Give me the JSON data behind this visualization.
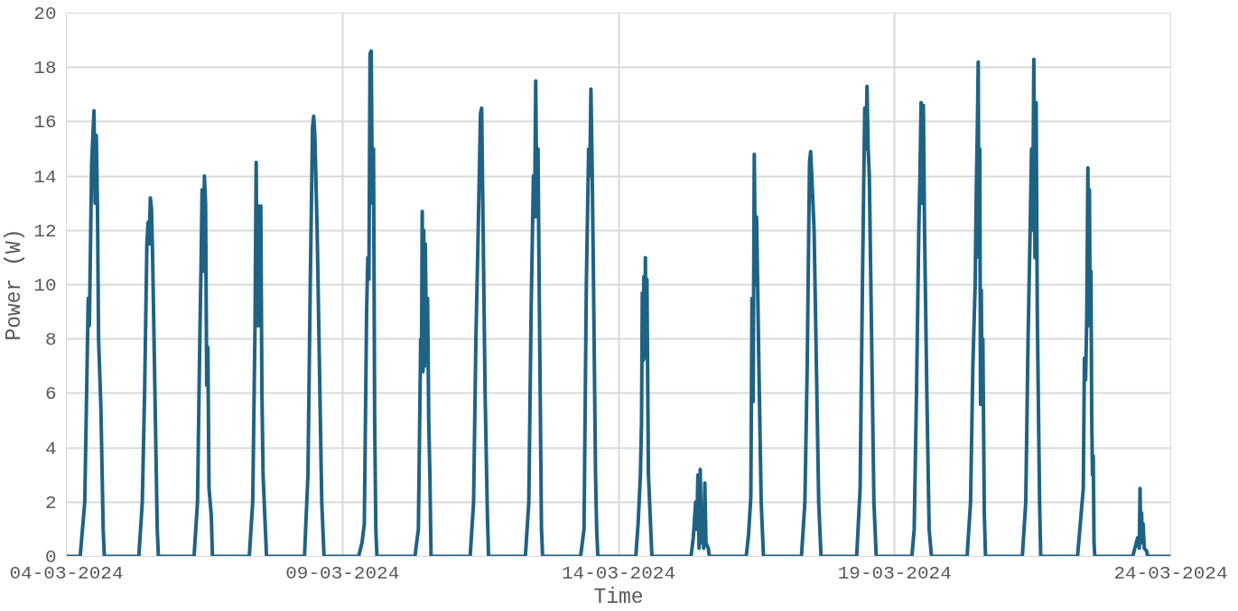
{
  "chart_data": {
    "type": "line",
    "xlabel": "Time",
    "ylabel": "Power (W)",
    "xlim": [
      "2024-03-04",
      "2024-03-24"
    ],
    "xticks": [
      {
        "value": "2024-03-04",
        "label": "04-03-2024"
      },
      {
        "value": "2024-03-09",
        "label": "09-03-2024"
      },
      {
        "value": "2024-03-14",
        "label": "14-03-2024"
      },
      {
        "value": "2024-03-19",
        "label": "19-03-2024"
      },
      {
        "value": "2024-03-24",
        "label": "24-03-2024"
      }
    ],
    "ylim": [
      0,
      20
    ],
    "yticks": [
      0,
      2,
      4,
      6,
      8,
      10,
      12,
      14,
      16,
      18,
      20
    ],
    "grid": true,
    "line_style": "solid",
    "series": [
      {
        "color": "#1f6384",
        "x": [
          "2024-03-04T00:00",
          "2024-03-04T06:00",
          "2024-03-04T08:00",
          "2024-03-04T09:30",
          "2024-03-04T10:00",
          "2024-03-04T11:00",
          "2024-03-04T12:00",
          "2024-03-04T12:30",
          "2024-03-04T13:00",
          "2024-03-04T13:30",
          "2024-03-04T14:00",
          "2024-03-04T15:00",
          "2024-03-04T16:00",
          "2024-03-04T16:30",
          "2024-03-05T07:30",
          "2024-03-05T09:00",
          "2024-03-05T10:00",
          "2024-03-05T11:00",
          "2024-03-05T11:30",
          "2024-03-05T12:00",
          "2024-03-05T12:30",
          "2024-03-05T13:00",
          "2024-03-05T13:30",
          "2024-03-05T14:30",
          "2024-03-05T15:30",
          "2024-03-05T16:00",
          "2024-03-06T07:30",
          "2024-03-06T09:00",
          "2024-03-06T10:00",
          "2024-03-06T10:30",
          "2024-03-06T11:00",
          "2024-03-06T11:30",
          "2024-03-06T12:00",
          "2024-03-06T12:30",
          "2024-03-06T13:00",
          "2024-03-06T13:30",
          "2024-03-06T14:00",
          "2024-03-06T15:00",
          "2024-03-06T15:30",
          "2024-03-07T07:30",
          "2024-03-07T09:00",
          "2024-03-07T10:00",
          "2024-03-07T10:30",
          "2024-03-07T11:00",
          "2024-03-07T11:30",
          "2024-03-07T12:00",
          "2024-03-07T12:30",
          "2024-03-07T13:00",
          "2024-03-07T13:30",
          "2024-03-07T14:00",
          "2024-03-07T15:00",
          "2024-03-08T07:30",
          "2024-03-08T09:00",
          "2024-03-08T10:00",
          "2024-03-08T11:00",
          "2024-03-08T11:30",
          "2024-03-08T12:00",
          "2024-03-08T13:00",
          "2024-03-08T14:00",
          "2024-03-08T15:00",
          "2024-03-08T16:00",
          "2024-03-09T07:00",
          "2024-03-09T08:30",
          "2024-03-09T09:30",
          "2024-03-09T10:30",
          "2024-03-09T11:00",
          "2024-03-09T11:30",
          "2024-03-09T12:00",
          "2024-03-09T12:30",
          "2024-03-09T13:00",
          "2024-03-09T13:30",
          "2024-03-09T14:00",
          "2024-03-09T14:30",
          "2024-03-09T15:00",
          "2024-03-10T07:30",
          "2024-03-10T09:00",
          "2024-03-10T10:00",
          "2024-03-10T10:20",
          "2024-03-10T10:40",
          "2024-03-10T11:00",
          "2024-03-10T11:20",
          "2024-03-10T11:40",
          "2024-03-10T12:00",
          "2024-03-10T12:30",
          "2024-03-10T13:00",
          "2024-03-10T13:30",
          "2024-03-10T14:00",
          "2024-03-10T14:30",
          "2024-03-11T07:30",
          "2024-03-11T09:00",
          "2024-03-11T10:00",
          "2024-03-11T11:00",
          "2024-03-11T12:00",
          "2024-03-11T12:30",
          "2024-03-11T13:00",
          "2024-03-11T14:00",
          "2024-03-11T15:00",
          "2024-03-11T15:30",
          "2024-03-12T07:30",
          "2024-03-12T09:00",
          "2024-03-12T10:00",
          "2024-03-12T11:00",
          "2024-03-12T11:30",
          "2024-03-12T12:00",
          "2024-03-12T12:30",
          "2024-03-12T13:00",
          "2024-03-12T13:30",
          "2024-03-12T14:00",
          "2024-03-12T14:30",
          "2024-03-12T15:00",
          "2024-03-13T07:30",
          "2024-03-13T09:00",
          "2024-03-13T10:00",
          "2024-03-13T11:00",
          "2024-03-13T11:30",
          "2024-03-13T12:00",
          "2024-03-13T12:30",
          "2024-03-13T13:00",
          "2024-03-13T14:00",
          "2024-03-13T14:30",
          "2024-03-13T15:00",
          "2024-03-14T07:30",
          "2024-03-14T08:30",
          "2024-03-14T09:30",
          "2024-03-14T10:00",
          "2024-03-14T10:20",
          "2024-03-14T10:40",
          "2024-03-14T11:00",
          "2024-03-14T11:20",
          "2024-03-14T11:40",
          "2024-03-14T12:00",
          "2024-03-14T12:20",
          "2024-03-14T12:40",
          "2024-03-14T13:00",
          "2024-03-14T14:00",
          "2024-03-14T14:30",
          "2024-03-15T07:30",
          "2024-03-15T08:30",
          "2024-03-15T09:30",
          "2024-03-15T10:00",
          "2024-03-15T10:30",
          "2024-03-15T11:00",
          "2024-03-15T11:30",
          "2024-03-15T12:00",
          "2024-03-15T12:30",
          "2024-03-15T13:00",
          "2024-03-15T13:30",
          "2024-03-15T14:00",
          "2024-03-15T15:00",
          "2024-03-15T15:30",
          "2024-03-16T07:30",
          "2024-03-16T08:30",
          "2024-03-16T09:30",
          "2024-03-16T10:00",
          "2024-03-16T10:30",
          "2024-03-16T11:00",
          "2024-03-16T11:30",
          "2024-03-16T12:00",
          "2024-03-16T13:00",
          "2024-03-16T14:00",
          "2024-03-16T15:00",
          "2024-03-17T07:30",
          "2024-03-17T09:00",
          "2024-03-17T10:00",
          "2024-03-17T11:00",
          "2024-03-17T11:30",
          "2024-03-17T12:00",
          "2024-03-17T12:30",
          "2024-03-17T13:00",
          "2024-03-17T14:00",
          "2024-03-17T15:00",
          "2024-03-17T16:00",
          "2024-03-18T07:30",
          "2024-03-18T09:00",
          "2024-03-18T10:00",
          "2024-03-18T11:00",
          "2024-03-18T11:30",
          "2024-03-18T12:00",
          "2024-03-18T12:30",
          "2024-03-18T13:00",
          "2024-03-18T14:00",
          "2024-03-18T15:00",
          "2024-03-18T16:00",
          "2024-03-19T07:30",
          "2024-03-19T08:30",
          "2024-03-19T09:30",
          "2024-03-19T10:30",
          "2024-03-19T11:00",
          "2024-03-19T11:30",
          "2024-03-19T12:00",
          "2024-03-19T12:30",
          "2024-03-19T13:00",
          "2024-03-19T14:00",
          "2024-03-19T15:00",
          "2024-03-19T16:00",
          "2024-03-20T07:30",
          "2024-03-20T09:00",
          "2024-03-20T10:00",
          "2024-03-20T11:00",
          "2024-03-20T11:30",
          "2024-03-20T12:00",
          "2024-03-20T12:20",
          "2024-03-20T12:40",
          "2024-03-20T13:00",
          "2024-03-20T13:20",
          "2024-03-20T13:40",
          "2024-03-20T14:00",
          "2024-03-20T14:20",
          "2024-03-20T15:00",
          "2024-03-20T15:30",
          "2024-03-21T07:30",
          "2024-03-21T09:00",
          "2024-03-21T10:00",
          "2024-03-21T11:00",
          "2024-03-21T11:30",
          "2024-03-21T12:00",
          "2024-03-21T12:30",
          "2024-03-21T13:00",
          "2024-03-21T13:30",
          "2024-03-21T14:00",
          "2024-03-21T15:00",
          "2024-03-21T15:30",
          "2024-03-22T07:30",
          "2024-03-22T09:00",
          "2024-03-22T10:00",
          "2024-03-22T10:30",
          "2024-03-22T11:00",
          "2024-03-22T11:30",
          "2024-03-22T12:00",
          "2024-03-22T12:20",
          "2024-03-22T12:40",
          "2024-03-22T13:00",
          "2024-03-22T13:20",
          "2024-03-22T13:40",
          "2024-03-22T14:00",
          "2024-03-22T14:20",
          "2024-03-22T14:40",
          "2024-03-22T15:00",
          "2024-03-23T07:30",
          "2024-03-23T09:00",
          "2024-03-23T09:40",
          "2024-03-23T10:20",
          "2024-03-23T10:40",
          "2024-03-23T11:00",
          "2024-03-23T11:20",
          "2024-03-23T11:40",
          "2024-03-23T12:00",
          "2024-03-23T12:30",
          "2024-03-23T13:30",
          "2024-03-23T14:00",
          "2024-03-24T00:00"
        ],
        "values": [
          0,
          0,
          2,
          9.5,
          8.5,
          14.5,
          16.4,
          13,
          15.5,
          13,
          8,
          5.5,
          1,
          0,
          0,
          2,
          6,
          11.5,
          12.3,
          11.5,
          13.2,
          12.8,
          11,
          6,
          1,
          0,
          0,
          2,
          8,
          10.5,
          13.5,
          10.5,
          14,
          13,
          6.3,
          7.7,
          2.5,
          1.5,
          0,
          0,
          2,
          8.5,
          14.5,
          8.5,
          12.9,
          8.5,
          12.9,
          6,
          3,
          2,
          0,
          0,
          3,
          10,
          15.8,
          16.2,
          15.5,
          12,
          7,
          2,
          0,
          0,
          0.5,
          1.2,
          9,
          11,
          10.2,
          18.5,
          18.6,
          13,
          15,
          5,
          1,
          0,
          0,
          1,
          8,
          6.8,
          12.7,
          6.8,
          12,
          7,
          11.5,
          8,
          9.5,
          5,
          3,
          0,
          0,
          2,
          8,
          12,
          16.3,
          16.5,
          13,
          6,
          1.5,
          0,
          0,
          2,
          9,
          14,
          12.5,
          17.5,
          12.5,
          15,
          10,
          5.5,
          1,
          0,
          0,
          1,
          10,
          15,
          14,
          17.2,
          14.5,
          11,
          3,
          1,
          0,
          0,
          1.2,
          3,
          5,
          9.7,
          7.2,
          10.3,
          7.5,
          11,
          7.3,
          10.2,
          6.5,
          3,
          1,
          0,
          0,
          0.7,
          2,
          1,
          3,
          0.3,
          3.2,
          0.5,
          1.7,
          0.3,
          2.7,
          0.5,
          0.3,
          0,
          0,
          0.8,
          2.2,
          9.5,
          5.7,
          14.8,
          10,
          12.5,
          7,
          2,
          0,
          0,
          2,
          7,
          14.5,
          14.9,
          14,
          13,
          12,
          7,
          2,
          0,
          0,
          2.5,
          10,
          16.5,
          15,
          17.3,
          15,
          14,
          8,
          2,
          0,
          0,
          1,
          6,
          12,
          14,
          16.7,
          13,
          16.6,
          12,
          6,
          1,
          0,
          0,
          2,
          7,
          10,
          13.5,
          16,
          18.2,
          11,
          15,
          5.6,
          9.8,
          5.6,
          8,
          1.5,
          0,
          0,
          2,
          8,
          12.5,
          15,
          12,
          18.3,
          11,
          16.7,
          9,
          2,
          0,
          0,
          1.5,
          2.5,
          7.3,
          6.5,
          8.8,
          14.3,
          8.5,
          13.5,
          8.5,
          10.5,
          5,
          3,
          3.7,
          0.5,
          0,
          0,
          0.5,
          0.7,
          0.3,
          2.5,
          0.5,
          1.6,
          0.5,
          1.2,
          0.3,
          0.2,
          0,
          0
        ]
      }
    ]
  }
}
